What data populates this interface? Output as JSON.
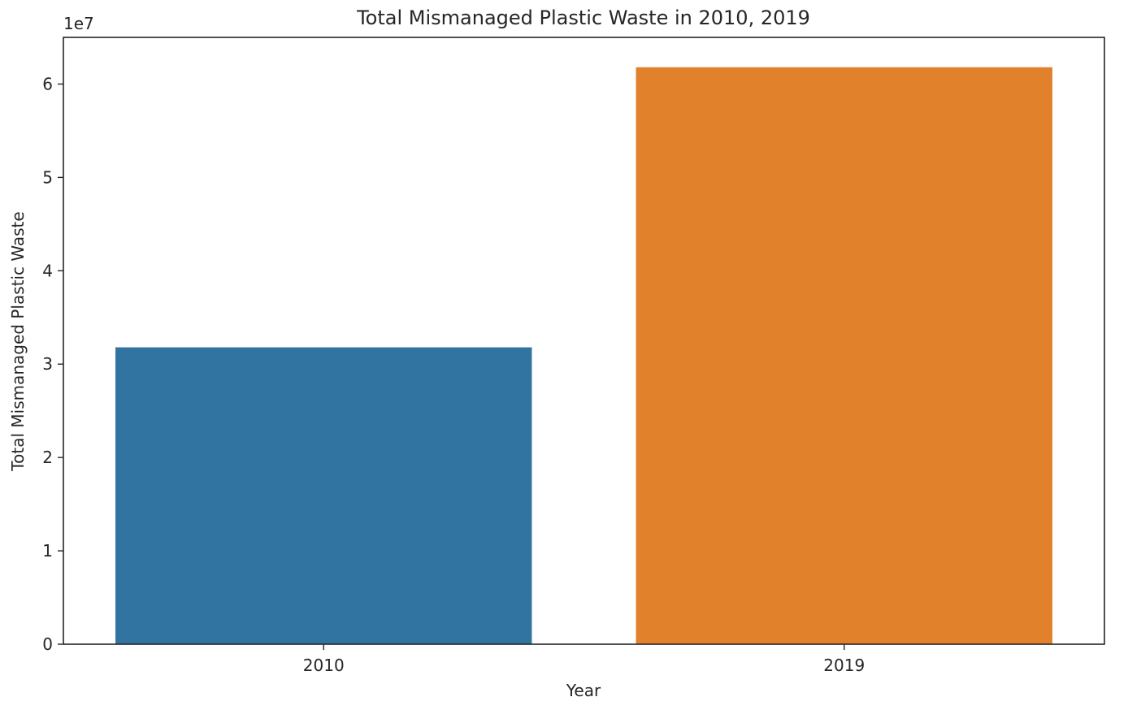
{
  "chart_data": {
    "type": "bar",
    "title": "Total Mismanaged Plastic Waste in 2010, 2019",
    "xlabel": "Year",
    "ylabel": "Total Mismanaged Plastic Waste",
    "y_offset_label": "1e7",
    "categories": [
      "2010",
      "2019"
    ],
    "values": [
      31800000,
      61800000
    ],
    "colors": [
      "#3274a1",
      "#e1812c"
    ],
    "ylim": [
      0,
      65000000
    ],
    "yticks": [
      0,
      10000000,
      20000000,
      30000000,
      40000000,
      50000000,
      60000000
    ],
    "ytick_labels": [
      "0",
      "1",
      "2",
      "3",
      "4",
      "5",
      "6"
    ],
    "grid": false,
    "legend": "none"
  }
}
